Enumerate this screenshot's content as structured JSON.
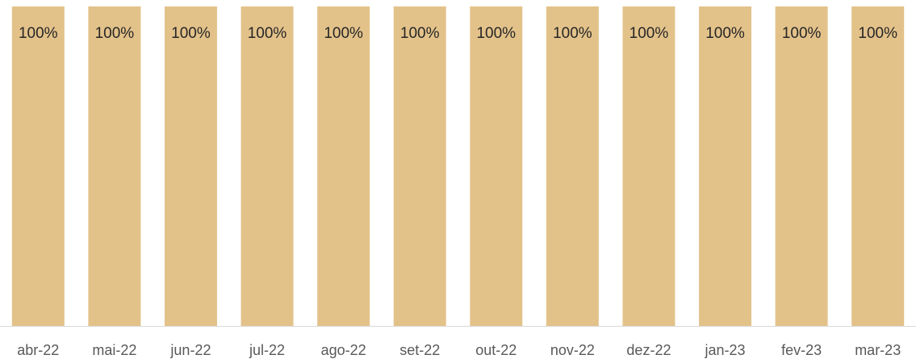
{
  "chart_data": {
    "type": "bar",
    "categories": [
      "abr-22",
      "mai-22",
      "jun-22",
      "jul-22",
      "ago-22",
      "set-22",
      "out-22",
      "nov-22",
      "dez-22",
      "jan-23",
      "fev-23",
      "mar-23"
    ],
    "values": [
      100,
      100,
      100,
      100,
      100,
      100,
      100,
      100,
      100,
      100,
      100,
      100
    ],
    "value_labels": [
      "100%",
      "100%",
      "100%",
      "100%",
      "100%",
      "100%",
      "100%",
      "100%",
      "100%",
      "100%",
      "100%",
      "100%"
    ],
    "color": "#e3c28a",
    "ylim": [
      0,
      100
    ]
  }
}
